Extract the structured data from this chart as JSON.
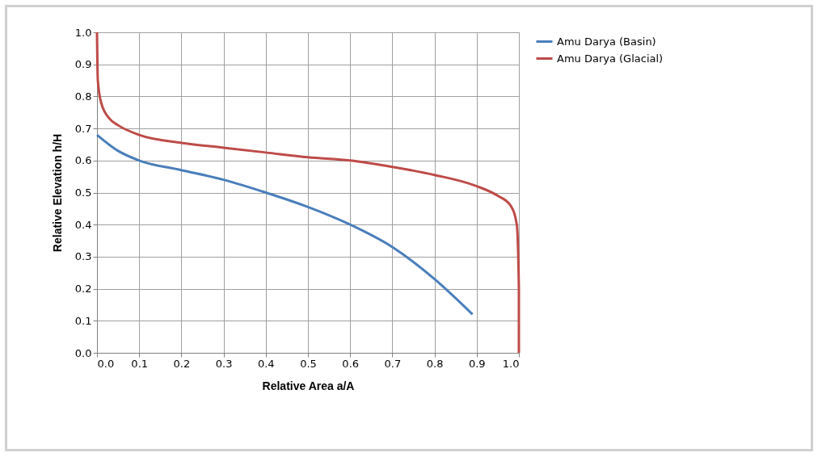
{
  "chart_data": {
    "type": "line",
    "xlabel": "Relative Area a/A",
    "ylabel": "Relative Elevation h/H",
    "xlim": [
      0,
      1
    ],
    "ylim": [
      0,
      1
    ],
    "xticks": [
      {
        "value": 0,
        "label": "0.0"
      },
      0.1,
      0.2,
      0.3,
      0.4,
      0.5,
      0.6,
      0.7,
      0.8,
      0.9,
      {
        "value": 1,
        "label": "1.0"
      }
    ],
    "yticks": [
      {
        "value": 0,
        "label": "0.0"
      },
      0.1,
      0.2,
      0.3,
      0.4,
      0.5,
      0.6,
      0.7,
      0.8,
      0.9,
      {
        "value": 1,
        "label": "1.0"
      }
    ],
    "grid": true,
    "legend": "right",
    "marker": "none",
    "line_style": "solid",
    "series": [
      {
        "name": "Amu Darya (Basin)",
        "color": "#4a7ebb",
        "x": [
          0,
          0.05,
          0.1,
          0.2,
          0.3,
          0.4,
          0.5,
          0.6,
          0.7,
          0.8,
          0.89
        ],
        "values": [
          0.68,
          0.63,
          0.6,
          0.57,
          0.54,
          0.5,
          0.455,
          0.4,
          0.33,
          0.23,
          0.12
        ]
      },
      {
        "name": "Amu Darya (Glacial)",
        "color": "#be4b48",
        "x": [
          0,
          0.002,
          0.01,
          0.03,
          0.05,
          0.1,
          0.2,
          0.3,
          0.4,
          0.5,
          0.6,
          0.7,
          0.8,
          0.9,
          0.95,
          0.98,
          0.995,
          1,
          1
        ],
        "values": [
          1,
          0.85,
          0.78,
          0.73,
          0.71,
          0.68,
          0.655,
          0.64,
          0.625,
          0.61,
          0.6,
          0.58,
          0.555,
          0.52,
          0.49,
          0.46,
          0.4,
          0.2,
          0
        ]
      }
    ]
  }
}
